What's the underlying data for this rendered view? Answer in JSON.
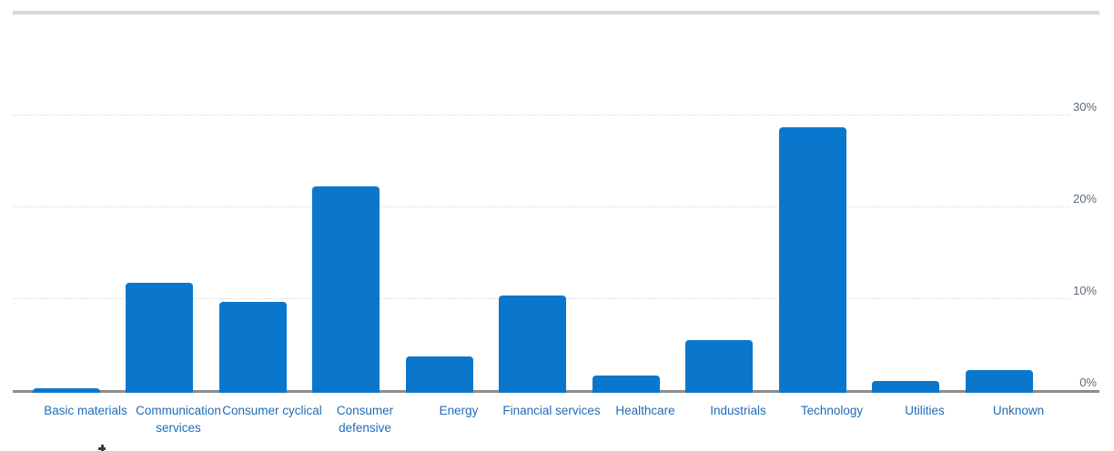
{
  "page": {
    "background": "#ffffff"
  },
  "chart_data": {
    "type": "bar",
    "title": "",
    "xlabel": "",
    "ylabel": "",
    "categories": [
      "Basic materials",
      "Communication services",
      "Consumer cyclical",
      "Consumer defensive",
      "Energy",
      "Financial services",
      "Healthcare",
      "Industrials",
      "Technology",
      "Utilities",
      "Unknown"
    ],
    "values": [
      0.2,
      11.7,
      9.6,
      22.2,
      3.7,
      10.3,
      1.6,
      5.4,
      28.6,
      1.0,
      2.2
    ],
    "unit": "%",
    "ylim": [
      0,
      33
    ],
    "yticks": [
      {
        "value": 0,
        "label": "0%"
      },
      {
        "value": 10,
        "label": "10%"
      },
      {
        "value": 20,
        "label": "20%"
      },
      {
        "value": 30,
        "label": "30%"
      }
    ],
    "y_axis_side": "right",
    "grid": "horizontal-dotted",
    "legend": "none",
    "colors": {
      "bar": "#0b77cc",
      "category_label": "#1f6cb7",
      "ytick_label": "#5d6b78",
      "axis_line": "#8d8d8d",
      "gridline": "#d8d8d8",
      "top_divider": "#d8d8d8"
    }
  }
}
